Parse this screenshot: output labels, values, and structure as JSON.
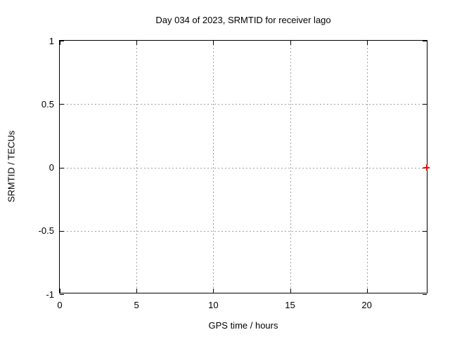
{
  "chart_data": {
    "type": "scatter",
    "title": "Day 034 of 2023, SRMTID for receiver lago",
    "xlabel": "GPS time / hours",
    "ylabel": "SRMTID / TECUs",
    "xlim": [
      0,
      24
    ],
    "ylim": [
      -1,
      1
    ],
    "xticks": [
      0,
      5,
      10,
      15,
      20
    ],
    "yticks": [
      1,
      0.5,
      0,
      -0.5,
      -1
    ],
    "grid": true,
    "legend": "none",
    "series": [
      {
        "name": "SRMTID",
        "marker": "plus",
        "marker_size": 9,
        "color": "#ff0000",
        "points": [
          {
            "x": 23.9,
            "y": 0.0
          }
        ]
      }
    ],
    "colors": {
      "background": "#ffffff",
      "border": "#000000",
      "grid": "#a0a0a0",
      "text": "#000000"
    }
  }
}
